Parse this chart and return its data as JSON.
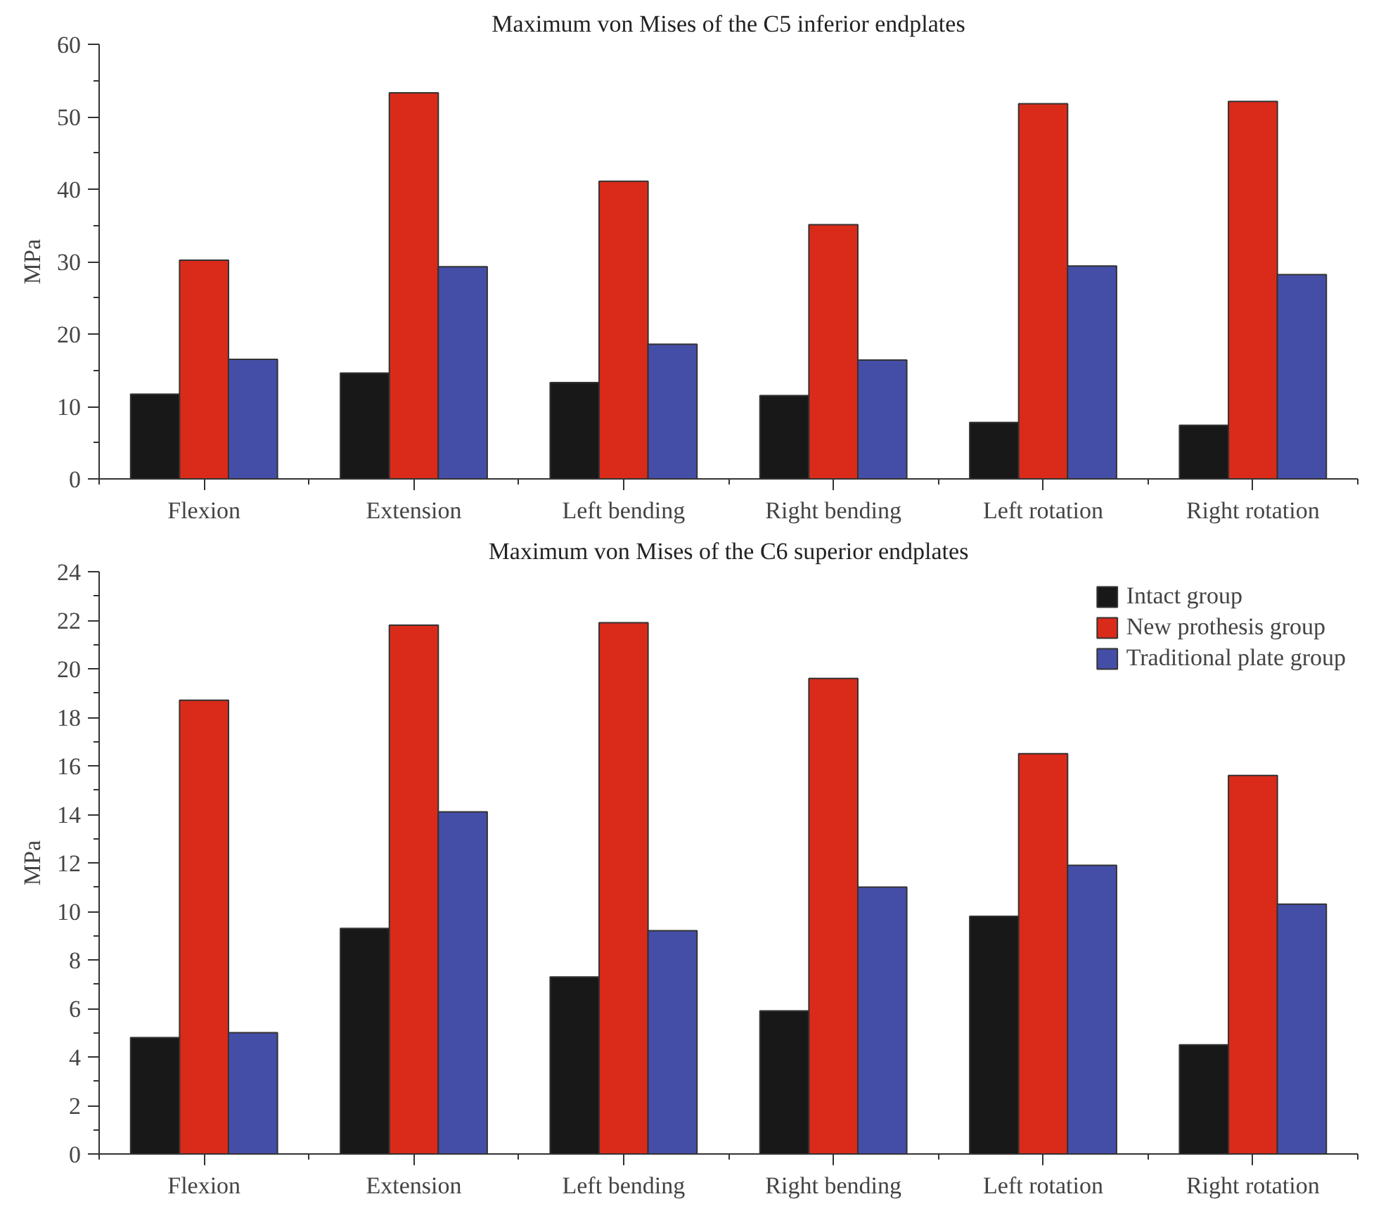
{
  "chart_data": [
    {
      "type": "bar",
      "title": "Maximum von Mises of the C5 inferior endplates",
      "ylabel": "MPa",
      "categories": [
        "Flexion",
        "Extension",
        "Left bending",
        "Right bending",
        "Left rotation",
        "Right rotation"
      ],
      "series": [
        {
          "color": "#181818",
          "values": [
            11.7,
            14.6,
            13.3,
            11.5,
            7.8,
            7.4
          ]
        },
        {
          "color": "#da2b1a",
          "values": [
            30.2,
            53.3,
            41.1,
            35.1,
            51.8,
            52.1
          ]
        },
        {
          "color": "#454ea6",
          "values": [
            16.5,
            29.3,
            18.6,
            16.4,
            29.4,
            28.2
          ]
        }
      ],
      "ylim": [
        0,
        60
      ],
      "yticks": [
        0,
        10,
        20,
        30,
        40,
        50,
        60
      ],
      "grid": false,
      "legend": false
    },
    {
      "type": "bar",
      "title": "Maximum von Mises of the C6 superior endplates",
      "ylabel": "MPa",
      "categories": [
        "Flexion",
        "Extension",
        "Left bending",
        "Right bending",
        "Left rotation",
        "Right rotation"
      ],
      "series": [
        {
          "name": "Intact group",
          "color": "#181818",
          "values": [
            4.8,
            9.3,
            7.3,
            5.9,
            9.8,
            4.5
          ]
        },
        {
          "name": "New prothesis group",
          "color": "#da2b1a",
          "values": [
            18.7,
            21.8,
            21.9,
            19.6,
            16.5,
            15.6
          ]
        },
        {
          "name": "Traditional plate group",
          "color": "#454ea6",
          "values": [
            5.0,
            14.1,
            9.2,
            11.0,
            11.9,
            10.3
          ]
        }
      ],
      "ylim": [
        0,
        24
      ],
      "yticks": [
        0,
        2,
        4,
        6,
        8,
        10,
        12,
        14,
        16,
        18,
        20,
        22,
        24
      ],
      "grid": false,
      "legend": "top right"
    }
  ]
}
